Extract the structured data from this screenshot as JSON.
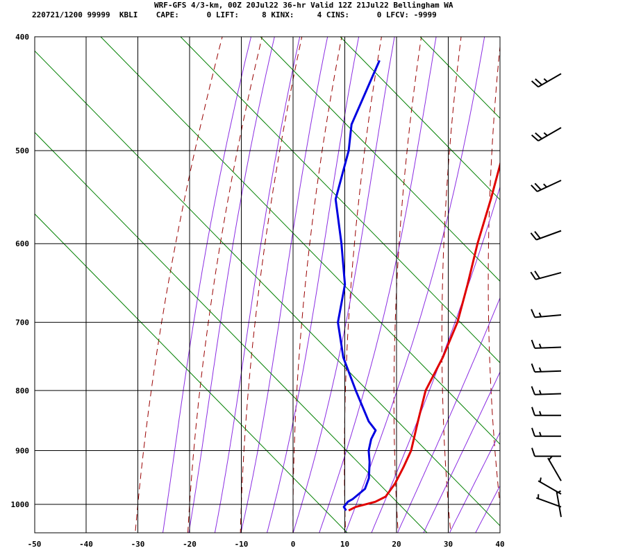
{
  "header": {
    "line1": "WRF-GFS 4/3-km, 00Z 20Jul22 36-hr Valid 12Z 21Jul22 Bellingham WA",
    "line2": "220721/1200 99999  KBLI    CAPE:      0 LIFT:     8 KINX:     4 CINS:      0 LFCV: -9999"
  },
  "chart_data": {
    "type": "line",
    "diagram": "skew-T log-p",
    "xlabel": "",
    "ylabel": "",
    "x_ticks": [
      -50,
      -40,
      -30,
      -20,
      -10,
      0,
      10,
      20,
      30,
      40
    ],
    "y_ticks": [
      400,
      500,
      600,
      700,
      800,
      900,
      1000
    ],
    "grid": true,
    "series": [
      {
        "color": "#e00000",
        "points": [
          {
            "p": 1012,
            "t": 11.7
          },
          {
            "p": 1005,
            "t": 12.5
          },
          {
            "p": 995,
            "t": 15.5
          },
          {
            "p": 985,
            "t": 16.7
          },
          {
            "p": 960,
            "t": 16.5
          },
          {
            "p": 930,
            "t": 15.6
          },
          {
            "p": 900,
            "t": 14.5
          },
          {
            "p": 850,
            "t": 11.3
          },
          {
            "p": 800,
            "t": 8.0
          },
          {
            "p": 750,
            "t": 6.2
          },
          {
            "p": 700,
            "t": 3.6
          },
          {
            "p": 650,
            "t": -0.3
          },
          {
            "p": 600,
            "t": -4.7
          },
          {
            "p": 550,
            "t": -9.0
          },
          {
            "p": 500,
            "t": -14.0
          },
          {
            "p": 450,
            "t": -20.0
          },
          {
            "p": 419,
            "t": -24.3
          }
        ]
      },
      {
        "color": "#0000e0",
        "points": [
          {
            "p": 1012,
            "t": 11.2
          },
          {
            "p": 1005,
            "t": 10.2
          },
          {
            "p": 995,
            "t": 10.2
          },
          {
            "p": 990,
            "t": 10.7
          },
          {
            "p": 970,
            "t": 11.5
          },
          {
            "p": 950,
            "t": 10.6
          },
          {
            "p": 920,
            "t": 8.2
          },
          {
            "p": 900,
            "t": 6.3
          },
          {
            "p": 880,
            "t": 5.0
          },
          {
            "p": 865,
            "t": 4.5
          },
          {
            "p": 850,
            "t": 1.8
          },
          {
            "p": 800,
            "t": -5.5
          },
          {
            "p": 750,
            "t": -13.0
          },
          {
            "p": 700,
            "t": -19.5
          },
          {
            "p": 650,
            "t": -24.0
          },
          {
            "p": 600,
            "t": -31.0
          },
          {
            "p": 550,
            "t": -39.0
          },
          {
            "p": 500,
            "t": -44.0
          },
          {
            "p": 475,
            "t": -47.5
          },
          {
            "p": 419,
            "t": -52.0
          }
        ]
      }
    ],
    "wind_barbs": [
      {
        "p": 430,
        "dir": 240,
        "spd": 25
      },
      {
        "p": 478,
        "dir": 240,
        "spd": 25
      },
      {
        "p": 530,
        "dir": 245,
        "spd": 25
      },
      {
        "p": 585,
        "dir": 250,
        "spd": 20
      },
      {
        "p": 635,
        "dir": 255,
        "spd": 20
      },
      {
        "p": 690,
        "dir": 265,
        "spd": 15
      },
      {
        "p": 735,
        "dir": 268,
        "spd": 15
      },
      {
        "p": 770,
        "dir": 268,
        "spd": 15
      },
      {
        "p": 805,
        "dir": 268,
        "spd": 15
      },
      {
        "p": 840,
        "dir": 270,
        "spd": 15
      },
      {
        "p": 875,
        "dir": 270,
        "spd": 15
      },
      {
        "p": 910,
        "dir": 270,
        "spd": 10
      },
      {
        "p": 955,
        "dir": 330,
        "spd": 5
      },
      {
        "p": 980,
        "dir": 300,
        "spd": 5
      },
      {
        "p": 1005,
        "dir": 290,
        "spd": 5
      },
      {
        "p": 1025,
        "dir": 350,
        "spd": 5
      }
    ],
    "background_lines": {
      "isotherm_color": "#000000",
      "dry_adiabat_color": "#990000",
      "moist_adiabat_color": "#8a2be2",
      "mixing_ratio_color": "#007f00"
    }
  }
}
